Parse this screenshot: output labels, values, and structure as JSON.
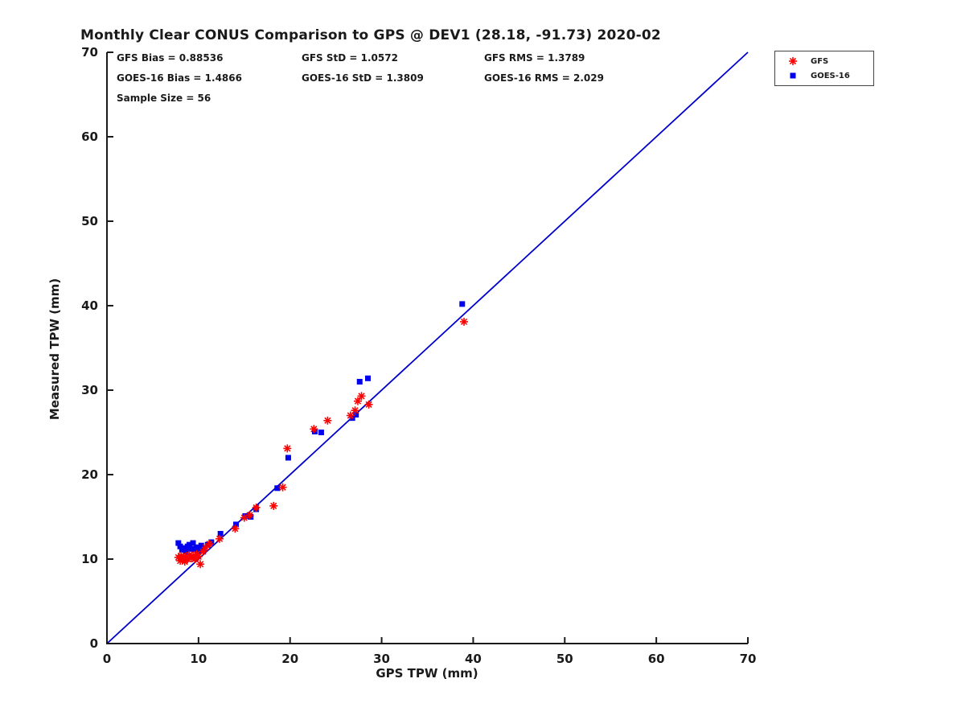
{
  "title": "Monthly Clear CONUS Comparison to GPS @ DEV1 (28.18, -91.73) 2020-02",
  "stats": {
    "gfs_bias": "GFS Bias = 0.88536",
    "gfs_std": "GFS StD = 1.0572",
    "gfs_rms": "GFS RMS = 1.3789",
    "goes_bias": "GOES-16 Bias = 1.4866",
    "goes_std": "GOES-16 StD = 1.3809",
    "goes_rms": "GOES-16 RMS = 2.029",
    "sample_size": "Sample Size = 56"
  },
  "legend": {
    "items": [
      {
        "label": "GFS",
        "marker": "asterisk",
        "color": "#ff0000"
      },
      {
        "label": "GOES-16",
        "marker": "square",
        "color": "#0000ee"
      }
    ]
  },
  "chart_data": {
    "type": "scatter",
    "title": "Monthly Clear CONUS Comparison to GPS @ DEV1 (28.18, -91.73) 2020-02",
    "xlabel": "GPS TPW (mm)",
    "ylabel": "Measured TPW (mm)",
    "xlim": [
      0,
      70
    ],
    "ylim": [
      0,
      70
    ],
    "xticks": [
      0,
      10,
      20,
      30,
      40,
      50,
      60,
      70
    ],
    "yticks": [
      0,
      10,
      20,
      30,
      40,
      50,
      60,
      70
    ],
    "grid": false,
    "legend_position": "top-right-outside",
    "identity_line": {
      "from": [
        0,
        0
      ],
      "to": [
        70,
        70
      ],
      "color": "#0000cc"
    },
    "series": [
      {
        "name": "GOES-16",
        "marker": "square",
        "color": "#0000ee",
        "points": [
          [
            7.8,
            11.9
          ],
          [
            8.0,
            11.5
          ],
          [
            8.2,
            11.1
          ],
          [
            8.4,
            11.3
          ],
          [
            8.6,
            10.9
          ],
          [
            8.8,
            11.5
          ],
          [
            9.0,
            11.7
          ],
          [
            9.2,
            11.2
          ],
          [
            9.4,
            11.9
          ],
          [
            9.6,
            11.1
          ],
          [
            9.8,
            11.4
          ],
          [
            10.0,
            11.0
          ],
          [
            10.3,
            11.6
          ],
          [
            10.6,
            11.2
          ],
          [
            11.0,
            11.7
          ],
          [
            11.4,
            12.0
          ],
          [
            12.4,
            13.0
          ],
          [
            14.1,
            14.1
          ],
          [
            15.1,
            15.1
          ],
          [
            15.7,
            15.0
          ],
          [
            16.3,
            15.9
          ],
          [
            18.6,
            18.4
          ],
          [
            19.8,
            22.0
          ],
          [
            22.7,
            25.1
          ],
          [
            23.4,
            25.0
          ],
          [
            26.8,
            26.7
          ],
          [
            27.2,
            27.1
          ],
          [
            27.6,
            31.0
          ],
          [
            28.5,
            31.4
          ],
          [
            38.8,
            40.2
          ]
        ]
      },
      {
        "name": "GFS",
        "marker": "asterisk",
        "color": "#ff0000",
        "points": [
          [
            7.8,
            10.2
          ],
          [
            8.0,
            9.8
          ],
          [
            8.1,
            10.4
          ],
          [
            8.3,
            10.0
          ],
          [
            8.5,
            9.7
          ],
          [
            8.6,
            10.3
          ],
          [
            8.8,
            10.0
          ],
          [
            9.0,
            10.5
          ],
          [
            9.2,
            10.1
          ],
          [
            9.4,
            10.4
          ],
          [
            9.6,
            10.0
          ],
          [
            9.8,
            10.6
          ],
          [
            10.0,
            10.3
          ],
          [
            10.2,
            9.4
          ],
          [
            10.5,
            10.9
          ],
          [
            10.8,
            11.4
          ],
          [
            11.2,
            11.8
          ],
          [
            12.3,
            12.4
          ],
          [
            14.0,
            13.6
          ],
          [
            15.0,
            14.9
          ],
          [
            15.6,
            15.2
          ],
          [
            16.3,
            16.1
          ],
          [
            18.2,
            16.3
          ],
          [
            19.2,
            18.5
          ],
          [
            19.7,
            23.1
          ],
          [
            22.6,
            25.4
          ],
          [
            24.1,
            26.4
          ],
          [
            26.6,
            27.0
          ],
          [
            27.1,
            27.6
          ],
          [
            27.4,
            28.7
          ],
          [
            27.8,
            29.3
          ],
          [
            28.6,
            28.3
          ],
          [
            39.0,
            38.1
          ]
        ]
      }
    ]
  }
}
